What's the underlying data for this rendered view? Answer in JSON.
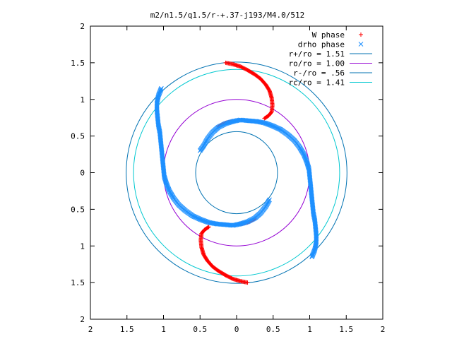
{
  "chart_data": {
    "type": "scatter",
    "title": "m2/n1.5/q1.5/r-+.37-j193/M4.0/512",
    "xlim": [
      -2,
      2
    ],
    "ylim": [
      -2,
      2
    ],
    "xticks": [
      -2,
      -1.5,
      -1,
      -0.5,
      0,
      0.5,
      1,
      1.5,
      2
    ],
    "yticks": [
      -2,
      -1.5,
      -1,
      -0.5,
      0,
      0.5,
      1,
      1.5,
      2
    ],
    "xtick_labels": [
      "2",
      "1.5",
      "1",
      "0.5",
      "0",
      "0.5",
      "1",
      "1.5",
      "2"
    ],
    "ytick_labels": [
      "2",
      "1.5",
      "1",
      "0.5",
      "0",
      "0.5",
      "1",
      "1.5",
      "2"
    ],
    "grid": false,
    "legend_position": "top-right",
    "circles": [
      {
        "name": "r+/ro = 1.51",
        "radius": 1.51,
        "color": "#0072b2"
      },
      {
        "name": "ro/ro = 1.00",
        "radius": 1.0,
        "color": "#9400d3"
      },
      {
        "name": "r-/ro = .56",
        "radius": 0.56,
        "color": "#0072b2"
      },
      {
        "name": "rc/ro = 1.41",
        "radius": 1.41,
        "color": "#00c8d0"
      }
    ],
    "series": [
      {
        "name": "W phase",
        "marker": "+",
        "color": "#ff0000",
        "points": [
          [
            -0.15,
            1.5
          ],
          [
            -0.05,
            1.48
          ],
          [
            0.05,
            1.45
          ],
          [
            0.15,
            1.4
          ],
          [
            0.25,
            1.34
          ],
          [
            0.33,
            1.28
          ],
          [
            0.4,
            1.2
          ],
          [
            0.45,
            1.12
          ],
          [
            0.48,
            1.02
          ],
          [
            0.49,
            0.92
          ],
          [
            0.48,
            0.83
          ],
          [
            0.44,
            0.78
          ],
          [
            0.38,
            0.74
          ],
          [
            0.15,
            -1.5
          ],
          [
            0.05,
            -1.48
          ],
          [
            -0.05,
            -1.45
          ],
          [
            -0.15,
            -1.4
          ],
          [
            -0.25,
            -1.34
          ],
          [
            -0.33,
            -1.28
          ],
          [
            -0.4,
            -1.2
          ],
          [
            -0.45,
            -1.12
          ],
          [
            -0.48,
            -1.02
          ],
          [
            -0.49,
            -0.92
          ],
          [
            -0.48,
            -0.83
          ],
          [
            -0.44,
            -0.78
          ],
          [
            -0.38,
            -0.74
          ],
          [
            -0.05,
            0.7
          ],
          [
            -0.15,
            0.68
          ],
          [
            -0.25,
            0.63
          ],
          [
            0.05,
            -0.7
          ],
          [
            0.15,
            -0.68
          ],
          [
            0.25,
            -0.63
          ]
        ]
      },
      {
        "name": "drho phase",
        "marker": "x",
        "color": "#1e90ff",
        "points": [
          [
            -1.03,
            1.15
          ],
          [
            -1.07,
            1.05
          ],
          [
            -1.09,
            0.95
          ],
          [
            -1.09,
            0.85
          ],
          [
            -1.08,
            0.75
          ],
          [
            -1.07,
            0.65
          ],
          [
            -1.05,
            0.55
          ],
          [
            -1.04,
            0.45
          ],
          [
            -1.03,
            0.35
          ],
          [
            -1.02,
            0.25
          ],
          [
            -1.01,
            0.15
          ],
          [
            -1.0,
            0.05
          ],
          [
            -0.99,
            -0.05
          ],
          [
            -0.96,
            -0.15
          ],
          [
            -0.92,
            -0.25
          ],
          [
            -0.86,
            -0.35
          ],
          [
            -0.79,
            -0.44
          ],
          [
            -0.7,
            -0.52
          ],
          [
            -0.6,
            -0.59
          ],
          [
            -0.49,
            -0.64
          ],
          [
            -0.38,
            -0.68
          ],
          [
            -0.27,
            -0.7
          ],
          [
            -0.15,
            -0.71
          ],
          [
            -0.05,
            -0.72
          ],
          [
            0.05,
            -0.7
          ],
          [
            0.15,
            -0.67
          ],
          [
            0.25,
            -0.62
          ],
          [
            0.33,
            -0.55
          ],
          [
            0.4,
            -0.46
          ],
          [
            0.45,
            -0.37
          ],
          [
            1.03,
            -1.15
          ],
          [
            1.07,
            -1.05
          ],
          [
            1.09,
            -0.95
          ],
          [
            1.09,
            -0.85
          ],
          [
            1.08,
            -0.75
          ],
          [
            1.07,
            -0.65
          ],
          [
            1.05,
            -0.55
          ],
          [
            1.04,
            -0.45
          ],
          [
            1.03,
            -0.35
          ],
          [
            1.02,
            -0.25
          ],
          [
            1.01,
            -0.15
          ],
          [
            1.0,
            -0.05
          ],
          [
            0.99,
            0.05
          ],
          [
            0.96,
            0.15
          ],
          [
            0.92,
            0.25
          ],
          [
            0.86,
            0.35
          ],
          [
            0.79,
            0.44
          ],
          [
            0.7,
            0.52
          ],
          [
            0.6,
            0.59
          ],
          [
            0.49,
            0.64
          ],
          [
            0.38,
            0.68
          ],
          [
            0.27,
            0.7
          ],
          [
            0.15,
            0.71
          ],
          [
            0.05,
            0.72
          ],
          [
            -0.05,
            0.7
          ],
          [
            -0.15,
            0.67
          ],
          [
            -0.25,
            0.62
          ],
          [
            -0.33,
            0.55
          ],
          [
            -0.4,
            0.46
          ],
          [
            -0.45,
            0.37
          ],
          [
            -0.5,
            0.3
          ]
        ]
      }
    ]
  }
}
